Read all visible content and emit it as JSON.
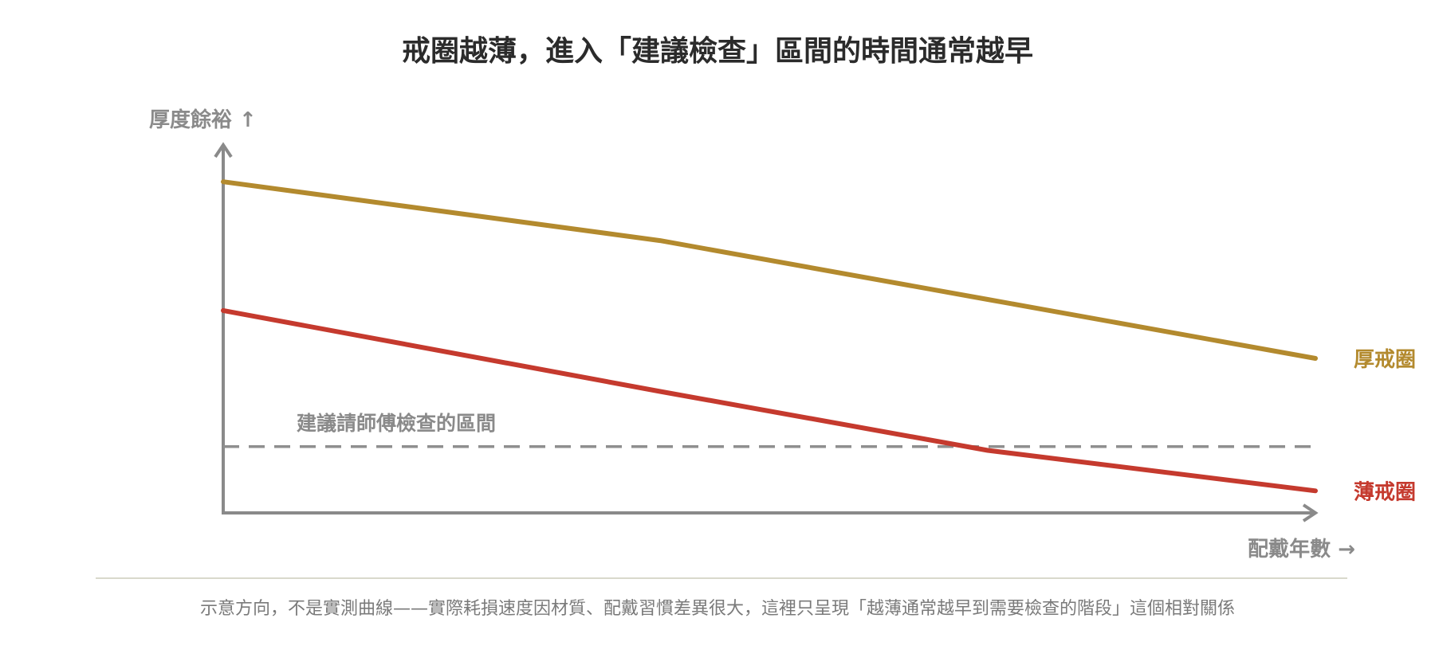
{
  "chart_data": {
    "type": "line",
    "title": "戒圈越薄，進入「建議檢查」區間的時間通常越早",
    "ylabel": "厚度餘裕 ↑",
    "xlabel": "配戴年數 →",
    "x": [
      0,
      0.4,
      0.7,
      1
    ],
    "ylim": [
      0,
      1
    ],
    "xlim": [
      0,
      1
    ],
    "series": [
      {
        "name": "厚戒圈",
        "color": "#b38a2e",
        "values": [
          0.9,
          0.74,
          0.58,
          0.42
        ]
      },
      {
        "name": "薄戒圈",
        "color": "#c53a2e",
        "values": [
          0.55,
          0.33,
          0.17,
          0.06
        ]
      }
    ],
    "threshold": {
      "label": "建議請師傅檢查的區間",
      "value": 0.18,
      "color": "#8f8f8f"
    },
    "grid": false,
    "caption": "示意方向，不是實測曲線——實際耗損速度因材質、配戴習慣差異很大，這裡只呈現「越薄通常越早到需要檢查的階段」這個相對關係"
  },
  "colors": {
    "axis": "#8a8a8a",
    "divider": "#d9d9cc",
    "title": "#2b2b2b"
  }
}
